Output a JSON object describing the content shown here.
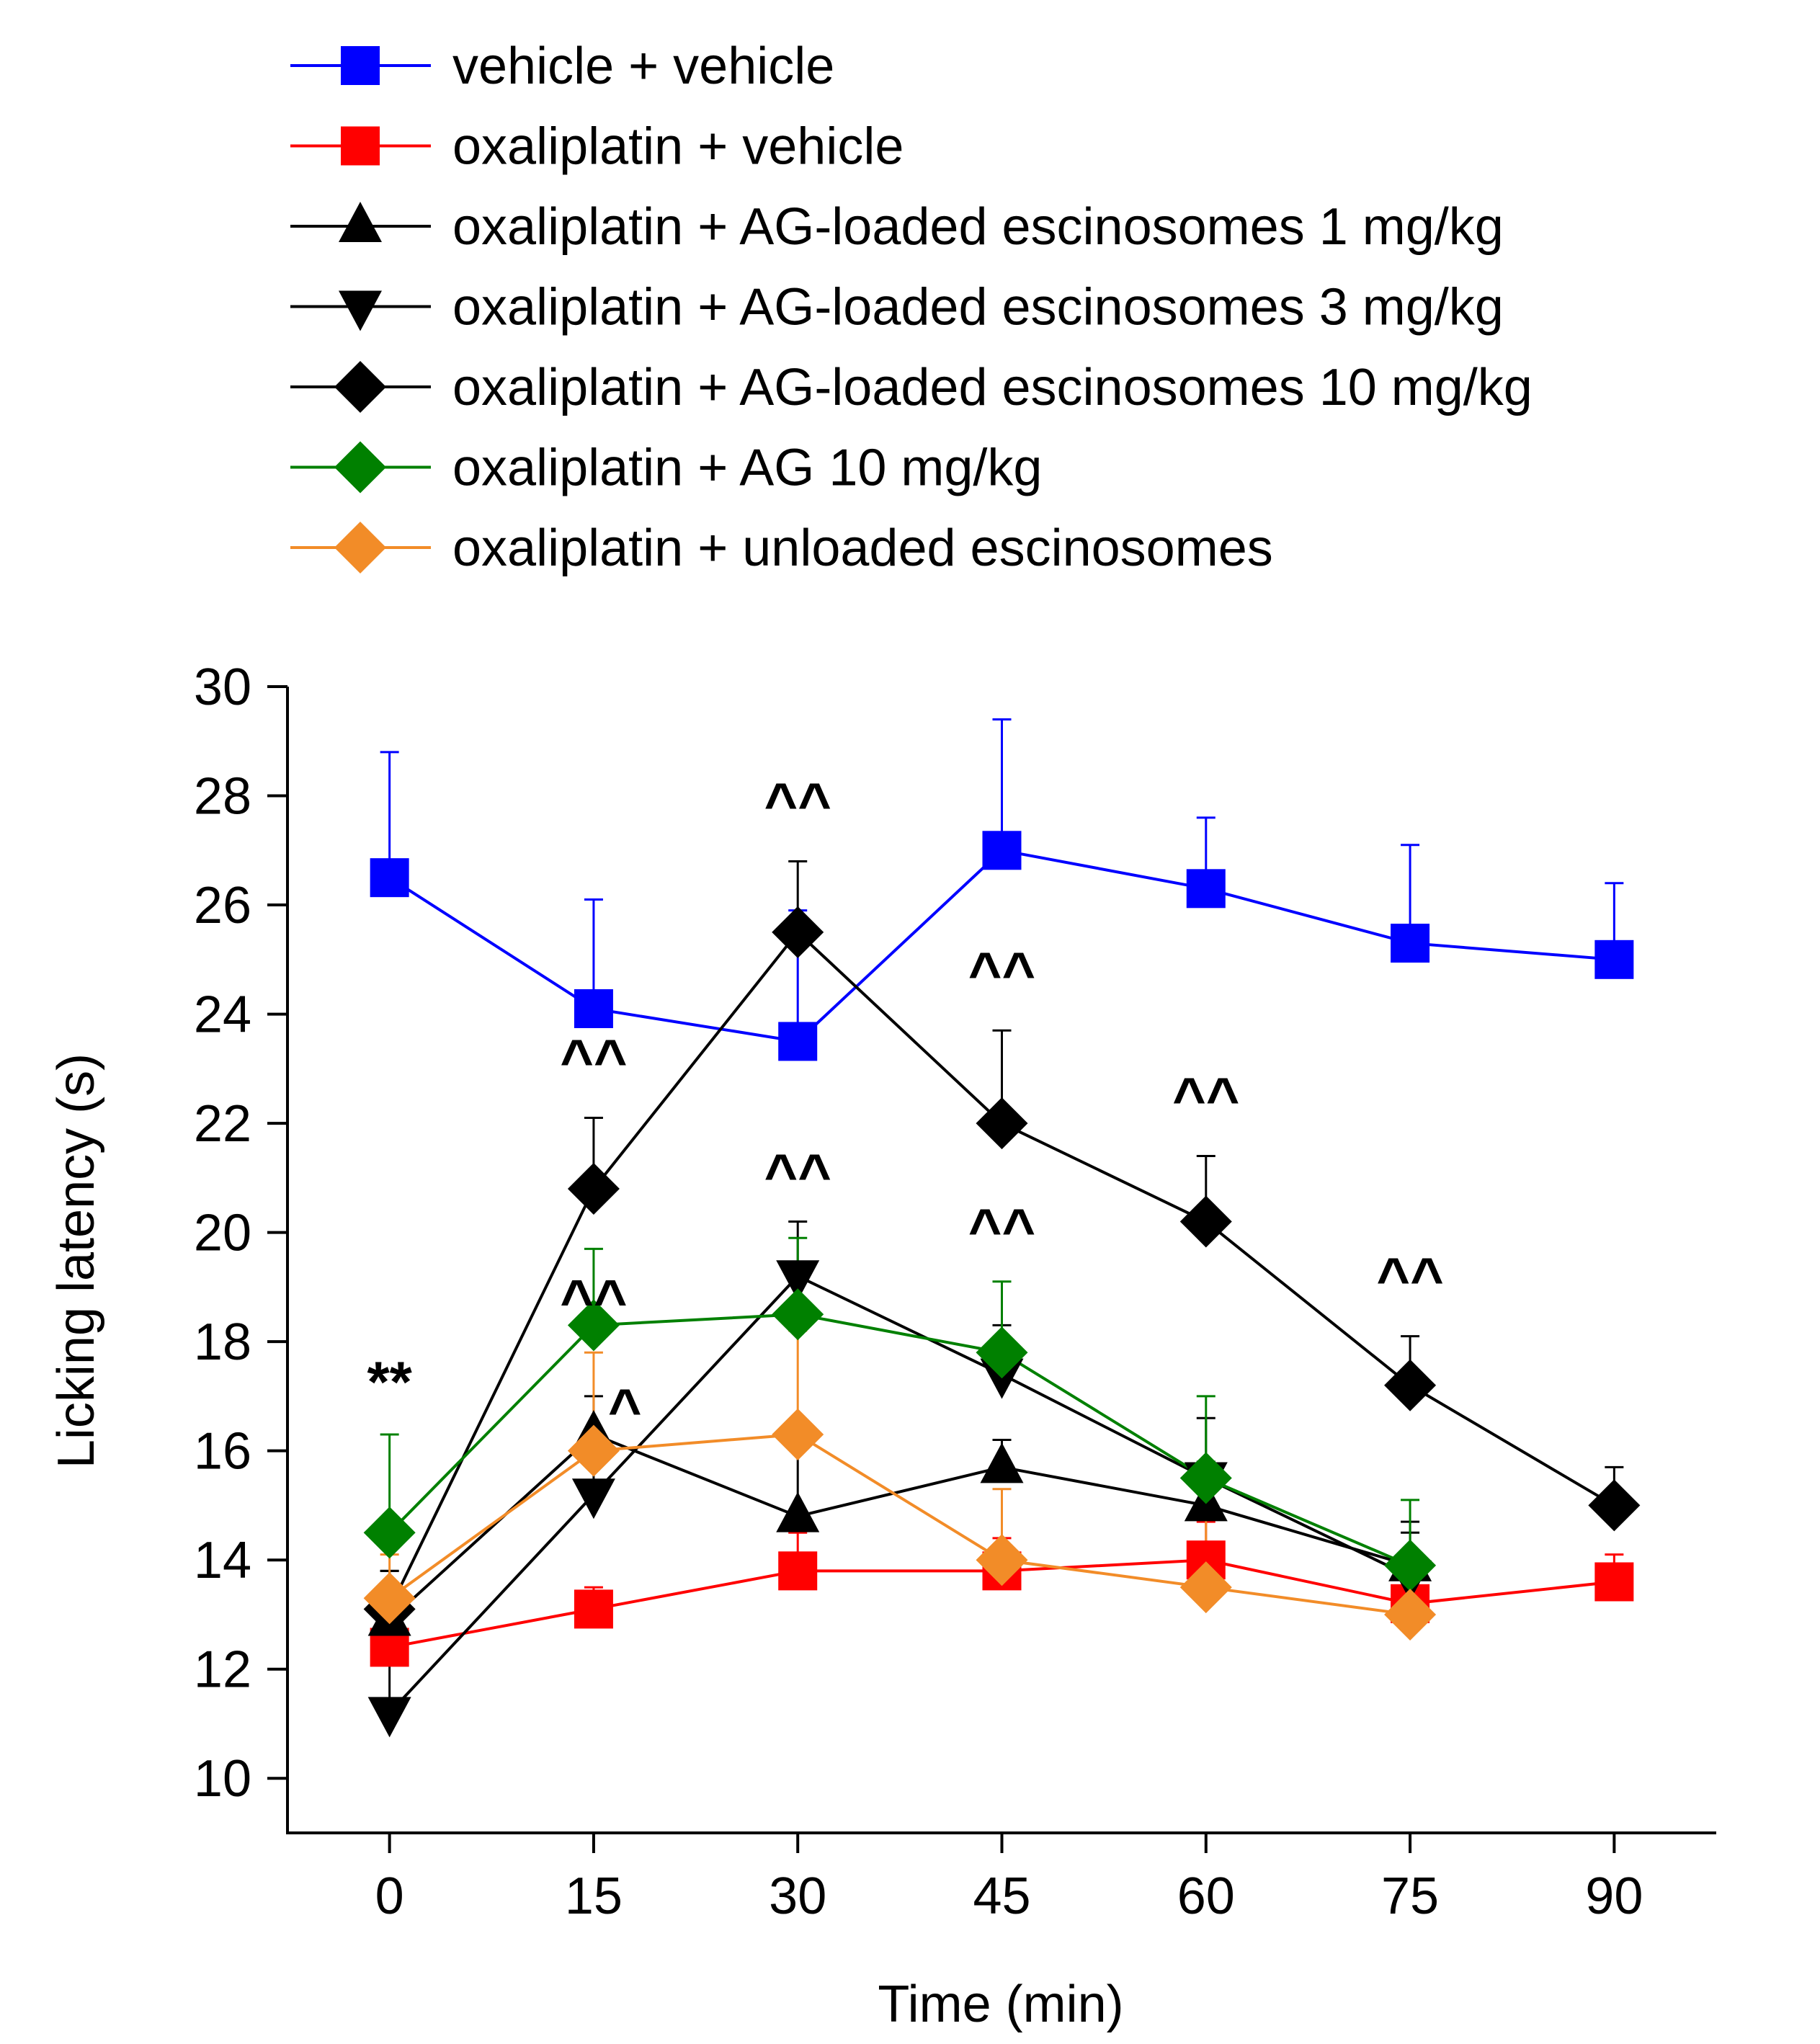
{
  "chart_data": {
    "type": "line",
    "xlabel": "Time (min)",
    "ylabel": "Licking latency (s)",
    "x": [
      0,
      15,
      30,
      45,
      60,
      75,
      90
    ],
    "x_ticks": [
      "0",
      "15",
      "30",
      "45",
      "60",
      "75",
      "90"
    ],
    "xlim": [
      -7.5,
      97.5
    ],
    "ylim": [
      9,
      30
    ],
    "y_ticks": [
      "10",
      "12",
      "14",
      "16",
      "18",
      "20",
      "22",
      "24",
      "26",
      "28",
      "30"
    ],
    "legend_position": "top",
    "series": [
      {
        "name": "vehicle + vehicle",
        "color": "#0000FF",
        "marker": "square",
        "values": [
          26.5,
          24.1,
          23.5,
          27.0,
          26.3,
          25.3,
          25.0
        ],
        "error": [
          2.3,
          2.0,
          2.4,
          2.4,
          1.3,
          1.8,
          1.4
        ]
      },
      {
        "name": "oxaliplatin + vehicle",
        "color": "#FF0000",
        "marker": "square",
        "values": [
          12.4,
          13.1,
          13.8,
          13.8,
          14.0,
          13.2,
          13.6
        ],
        "error": [
          0.3,
          0.4,
          0.7,
          0.6,
          0.7,
          0.5,
          0.5
        ]
      },
      {
        "name": "oxaliplatin + AG-loaded escinosomes 1 mg/kg",
        "color": "#000000",
        "marker": "triangle-up",
        "values": [
          12.9,
          16.3,
          14.8,
          15.7,
          15.0,
          13.9,
          null
        ],
        "error": [
          0.9,
          0.7,
          1.5,
          0.5,
          0.8,
          0.8,
          null
        ]
      },
      {
        "name": "oxaliplatin + AG-loaded escinosomes 3 mg/kg",
        "color": "#000000",
        "marker": "triangle-down",
        "values": [
          11.2,
          15.2,
          19.2,
          17.4,
          15.5,
          13.7,
          null
        ],
        "error": [
          1.0,
          0.8,
          1.0,
          0.9,
          1.1,
          0.8,
          null
        ]
      },
      {
        "name": "oxaliplatin + AG-loaded escinosomes 10 mg/kg",
        "color": "#000000",
        "marker": "diamond",
        "values": [
          13.1,
          20.8,
          25.5,
          22.0,
          20.2,
          17.2,
          15.0
        ],
        "error": [
          0.7,
          1.3,
          1.3,
          1.7,
          1.2,
          0.9,
          0.7
        ]
      },
      {
        "name": "oxaliplatin + AG 10 mg/kg",
        "color": "#008000",
        "marker": "diamond",
        "values": [
          14.5,
          18.3,
          18.5,
          17.8,
          15.5,
          13.9,
          null
        ],
        "error": [
          1.8,
          1.4,
          1.4,
          1.3,
          1.5,
          1.2,
          null
        ]
      },
      {
        "name": "oxaliplatin + unloaded escinosomes",
        "color": "#F28C28",
        "marker": "diamond",
        "values": [
          13.3,
          16.0,
          16.3,
          14.0,
          13.5,
          13.0,
          null
        ],
        "error": [
          0.8,
          1.8,
          1.9,
          1.3,
          1.4,
          0.9,
          null
        ]
      }
    ],
    "annotations": [
      {
        "x": 0,
        "y": 16.9,
        "text": "**"
      },
      {
        "x": 15,
        "y": 22.8,
        "text": "^^"
      },
      {
        "x": 15,
        "y": 18.4,
        "text": "^^"
      },
      {
        "x": 15,
        "y": 16.4,
        "text": "^"
      },
      {
        "x": 30,
        "y": 27.5,
        "text": "^^"
      },
      {
        "x": 30,
        "y": 20.7,
        "text": "^^"
      },
      {
        "x": 45,
        "y": 24.4,
        "text": "^^"
      },
      {
        "x": 45,
        "y": 19.7,
        "text": "^^"
      },
      {
        "x": 60,
        "y": 22.1,
        "text": "^^"
      },
      {
        "x": 75,
        "y": 18.8,
        "text": "^^"
      }
    ]
  }
}
